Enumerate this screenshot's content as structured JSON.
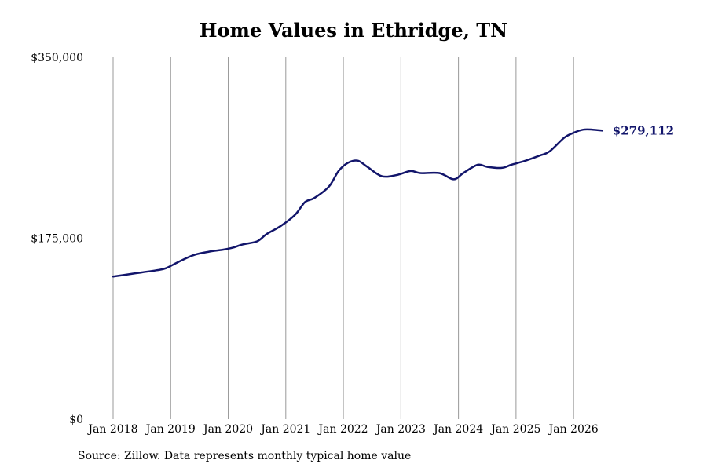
{
  "chart_data": {
    "type": "line",
    "title": "Home Values in Ethridge, TN",
    "xlabel": "",
    "ylabel": "",
    "ylim": [
      0,
      350000
    ],
    "y_ticks": [
      0,
      175000,
      350000
    ],
    "y_tick_labels": [
      "$0",
      "$175,000",
      "$350,000"
    ],
    "x_start": "2018-01",
    "x_end": "2026-09",
    "x_ticks": [
      "2018-01",
      "2019-01",
      "2020-01",
      "2021-01",
      "2022-01",
      "2023-01",
      "2024-01",
      "2025-01",
      "2026-01"
    ],
    "x_tick_labels": [
      "Jan 2018",
      "Jan 2019",
      "Jan 2020",
      "Jan 2021",
      "Jan 2022",
      "Jan 2023",
      "Jan 2024",
      "Jan 2025",
      "Jan 2026"
    ],
    "grid": "vertical",
    "line_color": "#12156b",
    "grid_color": "#999999",
    "end_label": "$279,112",
    "series": [
      {
        "x": [
          "2018-01",
          "2018-04",
          "2018-07",
          "2018-10",
          "2018-12",
          "2019-03",
          "2019-06",
          "2019-09",
          "2019-12",
          "2020-02",
          "2020-04",
          "2020-07",
          "2020-09",
          "2020-12",
          "2021-03",
          "2021-05",
          "2021-07",
          "2021-10",
          "2021-12",
          "2022-02",
          "2022-04",
          "2022-06",
          "2022-09",
          "2022-12",
          "2023-03",
          "2023-05",
          "2023-09",
          "2023-12",
          "2024-02",
          "2024-05",
          "2024-07",
          "2024-10",
          "2024-12",
          "2025-03",
          "2025-06",
          "2025-08",
          "2025-11",
          "2026-01",
          "2026-03",
          "2026-05",
          "2026-07"
        ],
        "values": [
          138000,
          140000,
          142000,
          144000,
          146000,
          153000,
          159000,
          162000,
          164000,
          166000,
          169000,
          172000,
          179000,
          187000,
          198000,
          210000,
          214000,
          225000,
          240000,
          248000,
          250000,
          244000,
          235000,
          236000,
          240000,
          238000,
          238000,
          232000,
          238000,
          246000,
          244000,
          243000,
          246000,
          250000,
          255000,
          259000,
          272000,
          277000,
          280000,
          280000,
          279112
        ]
      }
    ]
  },
  "source": "Source: Zillow. Data represents monthly typical home value"
}
